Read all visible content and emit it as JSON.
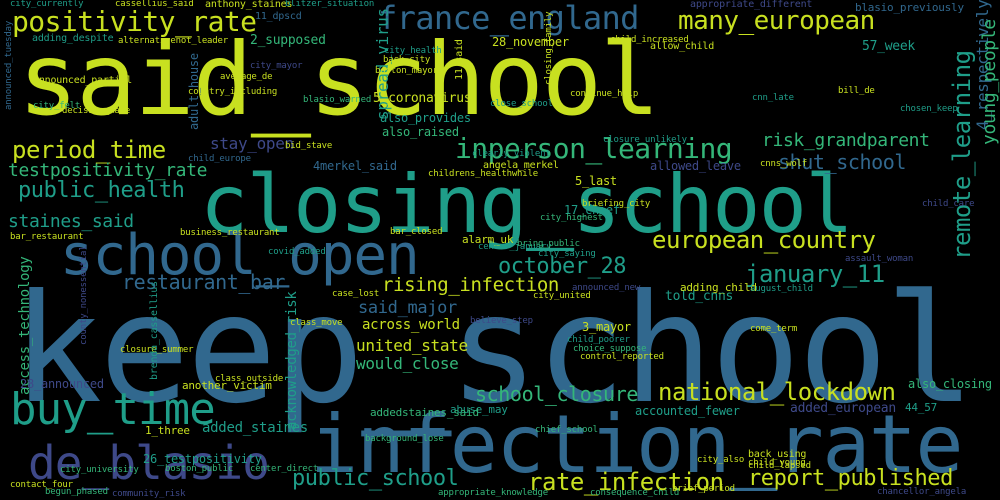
{
  "colors": {
    "background": "#000000",
    "yellow_green": "#c8e020",
    "green": "#34b679",
    "teal": "#1f9e89",
    "blue": "#31688e",
    "indigo": "#3e4989",
    "purple": "#440154"
  },
  "words": [
    "said_school",
    "keep_school",
    "closing_school",
    "infection_rate",
    "school_open",
    "de_blasio",
    "buy_time",
    "positivity_rate",
    "france_england",
    "many_european",
    "period_time",
    "inperson_learning",
    "public_health",
    "european_country",
    "january_11",
    "october_28",
    "remote_learning",
    "national_lockdown",
    "rate_infection",
    "report_published",
    "public_school",
    "school_closure",
    "shut_school",
    "risk_grandparent",
    "testpositivity_rate",
    "staines_said",
    "restaurant_bar",
    "rising_infection",
    "said_major",
    "united_state",
    "would_close",
    "across_world",
    "access_technology",
    "acknowledged_risk",
    "adult_house",
    "stay_open",
    "spread_virus",
    "4_respectively",
    "young_people",
    "blasio_previously",
    "2_supposed",
    "28_november",
    "told_cnns",
    "5_coronavirus",
    "also_provides",
    "also_raised",
    "also_closing",
    "added_european",
    "57_week",
    "44_57",
    "3_mayor",
    "alarm_uk",
    "17_chief",
    "5_last",
    "adding_child",
    "allowed_leave",
    "accounted_fewer",
    "abuse_may",
    "addedstaines_said",
    "another_victim",
    "1_three",
    "added_staines",
    "26_testpositivity",
    "28_announced",
    "anthony_staines",
    "cassellius_said",
    "city_currently",
    "blitzer_situation",
    "appropriate_different",
    "adding_despite",
    "alternativenot_leader",
    "11_dpscd",
    "11_said",
    "4merkel_said",
    "angela_merkel",
    "bid_stave",
    "business_restaurant",
    "bar_closed",
    "child_europe",
    "chief_school",
    "appropriate_knowledge",
    "consequence_child",
    "brief_period",
    "chancellor_angela",
    "begun_phased",
    "community_risk",
    "child_lapsed",
    "back_using",
    "child_young",
    "city_also",
    "boston_public",
    "center_direct",
    "city_university",
    "contact_four",
    "background_lose",
    "closure_summer",
    "announced_partial",
    "average_de",
    "allow_child",
    "bill_de",
    "boston_mayor",
    "blasio_warned",
    "child_increased",
    "back_city",
    "city_mayor",
    "city_health",
    "closing_family",
    "continue_help",
    "child_care",
    "come_term",
    "city_united",
    "believe_step",
    "bar_restaurant",
    "announced_new",
    "center_january",
    "bring_public",
    "august_child",
    "city_saying",
    "child_poorer",
    "choice_suppose",
    "control_reported",
    "clearly_violent",
    "closure_unlikely",
    "close_school",
    "brenda_cassellius",
    "class_outside",
    "class_move",
    "case_lost",
    "covid_added",
    "county_nonessential",
    "assault_woman",
    "briefing_city",
    "city_highest",
    "cnns_wolf",
    "childrens_healthwhile",
    "announced_tuesday",
    "city_felt",
    "country_including",
    "decision_made",
    "chosen_keep",
    "cnn_late"
  ]
}
